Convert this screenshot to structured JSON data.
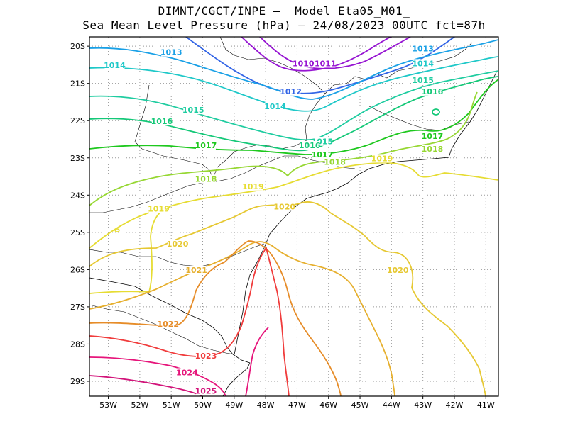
{
  "title_line1": "DIMNT/CGCT/INPE –  Model Eta05_M01_",
  "title_line2": "Sea Mean Level Pressure (hPa) – 24/08/2023 00UTC fct=87h",
  "lat_ticks": [
    "20S",
    "21S",
    "22S",
    "23S",
    "24S",
    "25S",
    "26S",
    "27S",
    "28S",
    "29S"
  ],
  "lon_ticks": [
    "53W",
    "52W",
    "51W",
    "50W",
    "49W",
    "48W",
    "47W",
    "46W",
    "45W",
    "44W",
    "43W",
    "42W",
    "41W"
  ],
  "contour_labels": [
    {
      "text": "1013",
      "lon": -51.0,
      "lat": -20.2,
      "color": "#19a0e6"
    },
    {
      "text": "1014",
      "lon": -52.8,
      "lat": -20.55,
      "color": "#1ec8c8"
    },
    {
      "text": "1015",
      "lon": -50.3,
      "lat": -21.75,
      "color": "#1ecca0"
    },
    {
      "text": "1016",
      "lon": -51.3,
      "lat": -22.05,
      "color": "#14c878"
    },
    {
      "text": "1017",
      "lon": -49.9,
      "lat": -22.7,
      "color": "#1ec81e"
    },
    {
      "text": "1018",
      "lon": -49.9,
      "lat": -23.6,
      "color": "#96d732"
    },
    {
      "text": "1019",
      "lon": -48.4,
      "lat": -23.8,
      "color": "#e6dc32"
    },
    {
      "text": "1019",
      "lon": -51.4,
      "lat": -24.4,
      "color": "#e6dc32"
    },
    {
      "text": "1020",
      "lon": -50.8,
      "lat": -25.35,
      "color": "#e6c832"
    },
    {
      "text": "1020",
      "lon": -47.4,
      "lat": -24.35,
      "color": "#e6c832"
    },
    {
      "text": "1020",
      "lon": -43.8,
      "lat": -26.05,
      "color": "#e6c832"
    },
    {
      "text": "1021",
      "lon": -50.2,
      "lat": -26.05,
      "color": "#e6af2d"
    },
    {
      "text": "1022",
      "lon": -51.1,
      "lat": -27.5,
      "color": "#e68c28"
    },
    {
      "text": "1023",
      "lon": -49.9,
      "lat": -28.35,
      "color": "#f03c3c"
    },
    {
      "text": "1024",
      "lon": -50.5,
      "lat": -28.8,
      "color": "#e6147a"
    },
    {
      "text": "1025",
      "lon": -49.9,
      "lat": -29.3,
      "color": "#d2147a"
    },
    {
      "text": "1010",
      "lon": -46.8,
      "lat": -20.5,
      "color": "#9614d2"
    },
    {
      "text": "1011",
      "lon": -46.1,
      "lat": -20.5,
      "color": "#9614d2"
    },
    {
      "text": "1012",
      "lon": -47.2,
      "lat": -21.25,
      "color": "#3264e6"
    },
    {
      "text": "1014",
      "lon": -47.7,
      "lat": -21.65,
      "color": "#1ec8c8"
    },
    {
      "text": "1015",
      "lon": -46.2,
      "lat": -22.6,
      "color": "#1ecca0"
    },
    {
      "text": "1016",
      "lon": -46.6,
      "lat": -22.7,
      "color": "#14c878"
    },
    {
      "text": "1017",
      "lon": -46.2,
      "lat": -22.95,
      "color": "#1ec81e"
    },
    {
      "text": "1018",
      "lon": -45.8,
      "lat": -23.15,
      "color": "#96d732"
    },
    {
      "text": "1019",
      "lon": -44.3,
      "lat": -23.05,
      "color": "#e6dc32"
    },
    {
      "text": "1013",
      "lon": -43.0,
      "lat": -20.1,
      "color": "#19a0e6"
    },
    {
      "text": "1014",
      "lon": -43.0,
      "lat": -20.5,
      "color": "#1ec8c8"
    },
    {
      "text": "1015",
      "lon": -43.0,
      "lat": -20.95,
      "color": "#1ecca0"
    },
    {
      "text": "1016",
      "lon": -42.7,
      "lat": -21.25,
      "color": "#14c878"
    },
    {
      "text": "1017",
      "lon": -42.7,
      "lat": -22.45,
      "color": "#1ec81e"
    },
    {
      "text": "1018",
      "lon": -42.7,
      "lat": -22.8,
      "color": "#96d732"
    }
  ]
}
